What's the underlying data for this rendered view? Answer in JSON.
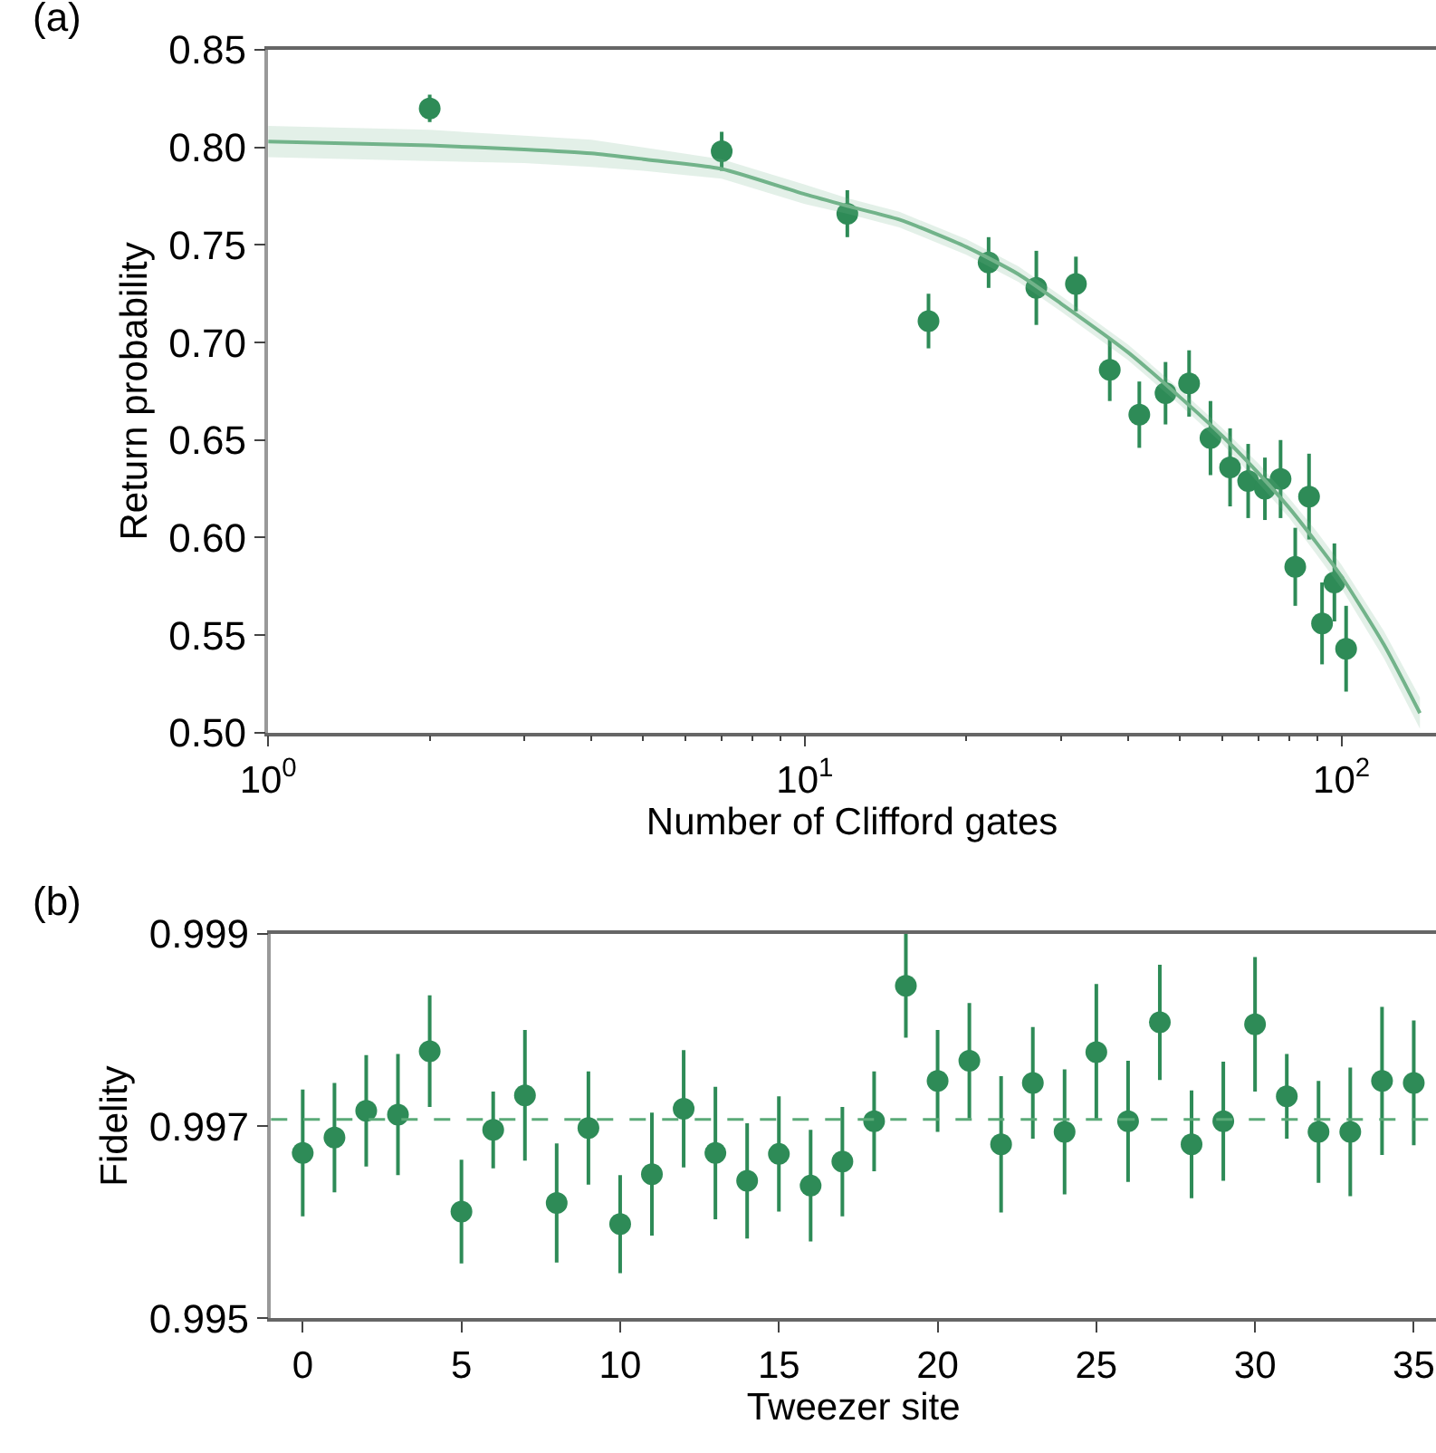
{
  "chart_data": [
    {
      "type": "scatter",
      "title": "(a)",
      "xlabel": "Number of Clifford gates",
      "ylabel": "Return probability",
      "log": "x",
      "xlim": [
        1,
        150
      ],
      "xticks": [
        {
          "value": 1,
          "label": "10$^{0}$"
        },
        {
          "value": 10,
          "label": "10$^{1}$"
        },
        {
          "value": 100,
          "label": "10$^{2}$"
        }
      ],
      "ylim": [
        0.5,
        0.85
      ],
      "yticks": [
        {
          "value": 0.5,
          "label": "0.50"
        },
        0.55,
        {
          "value": 0.6,
          "label": "0.60"
        },
        0.65,
        {
          "value": 0.7,
          "label": "0.70"
        },
        0.75,
        {
          "value": 0.8,
          "label": "0.80"
        },
        0.85
      ],
      "marker": "circle",
      "series": [
        {
          "color": "#2e8b57",
          "x": [
            2,
            7,
            12,
            17,
            22,
            27,
            32,
            37,
            42,
            47,
            52,
            57,
            62,
            67,
            72,
            77,
            82,
            87,
            92,
            97,
            102
          ],
          "values": [
            0.82,
            0.798,
            0.766,
            0.711,
            0.741,
            0.728,
            0.73,
            0.686,
            0.663,
            0.674,
            0.679,
            0.651,
            0.636,
            0.629,
            0.625,
            0.63,
            0.585,
            0.621,
            0.556,
            0.577,
            0.543
          ],
          "errors": [
            0.007,
            0.01,
            0.012,
            0.014,
            0.013,
            0.019,
            0.014,
            0.016,
            0.017,
            0.016,
            0.017,
            0.019,
            0.02,
            0.019,
            0.016,
            0.02,
            0.02,
            0.022,
            0.021,
            0.02,
            0.022
          ]
        },
        {
          "type": "line",
          "marker": "none",
          "color": "#72b38a",
          "x": [
            1,
            2,
            3,
            4,
            5,
            7,
            10,
            12,
            15,
            20,
            25,
            30,
            40,
            50,
            60,
            70,
            80,
            90,
            100,
            120,
            140
          ],
          "values": [
            0.803,
            0.801,
            0.799,
            0.797,
            0.794,
            0.789,
            0.776,
            0.77,
            0.763,
            0.749,
            0.735,
            0.72,
            0.695,
            0.672,
            0.652,
            0.633,
            0.615,
            0.597,
            0.58,
            0.545,
            0.51
          ],
          "lower": [
            0.795,
            0.793,
            0.792,
            0.79,
            0.788,
            0.784,
            0.771,
            0.766,
            0.759,
            0.745,
            0.731,
            0.716,
            0.691,
            0.668,
            0.648,
            0.628,
            0.61,
            0.591,
            0.574,
            0.538,
            0.502
          ],
          "upper": [
            0.811,
            0.809,
            0.806,
            0.804,
            0.8,
            0.794,
            0.781,
            0.774,
            0.767,
            0.753,
            0.739,
            0.724,
            0.699,
            0.676,
            0.656,
            0.638,
            0.62,
            0.603,
            0.586,
            0.552,
            0.518
          ]
        }
      ]
    },
    {
      "type": "scatter",
      "title": "(b)",
      "xlabel": "Tweezer site",
      "ylabel": "Fidelity",
      "xlim": [
        -1,
        35.7
      ],
      "xticks": [
        0,
        5,
        10,
        15,
        20,
        25,
        30,
        35
      ],
      "ylim": [
        0.995,
        0.999
      ],
      "yticks": [
        0.995,
        0.997,
        0.999
      ],
      "marker": "circle",
      "ref_lines": [
        {
          "axis": "y",
          "value": 0.99707,
          "color": "#5aaa78",
          "line_style": "dashed"
        }
      ],
      "series": [
        {
          "type": "scatter",
          "color": "#2e8b57",
          "x": [
            0,
            1,
            2,
            3,
            4,
            5,
            6,
            7,
            8,
            9,
            10,
            11,
            12,
            13,
            14,
            15,
            16,
            17,
            18,
            19,
            20,
            21,
            22,
            23,
            24,
            25,
            26,
            27,
            28,
            29,
            30,
            31,
            32,
            33,
            34,
            35
          ],
          "values": [
            0.99672,
            0.99688,
            0.99716,
            0.99712,
            0.99778,
            0.99611,
            0.99696,
            0.99732,
            0.9962,
            0.99698,
            0.99598,
            0.9965,
            0.99718,
            0.99672,
            0.99643,
            0.99671,
            0.99638,
            0.99663,
            0.99705,
            0.99846,
            0.99747,
            0.99768,
            0.99681,
            0.99745,
            0.99694,
            0.99777,
            0.99705,
            0.99808,
            0.99681,
            0.99705,
            0.99806,
            0.99731,
            0.99694,
            0.99694,
            0.99747,
            0.99745
          ],
          "errors": [
            0.00066,
            0.00057,
            0.00058,
            0.00063,
            0.00058,
            0.00054,
            0.0004,
            0.00068,
            0.00062,
            0.00059,
            0.00051,
            0.00064,
            0.00061,
            0.00069,
            0.0006,
            0.0006,
            0.00058,
            0.00057,
            0.00052,
            0.00054,
            0.00053,
            0.0006,
            0.00071,
            0.00058,
            0.00065,
            0.00071,
            0.00063,
            0.0006,
            0.00056,
            0.00062,
            0.0007,
            0.00044,
            0.00053,
            0.00067,
            0.00077,
            0.00065
          ]
        }
      ]
    }
  ]
}
